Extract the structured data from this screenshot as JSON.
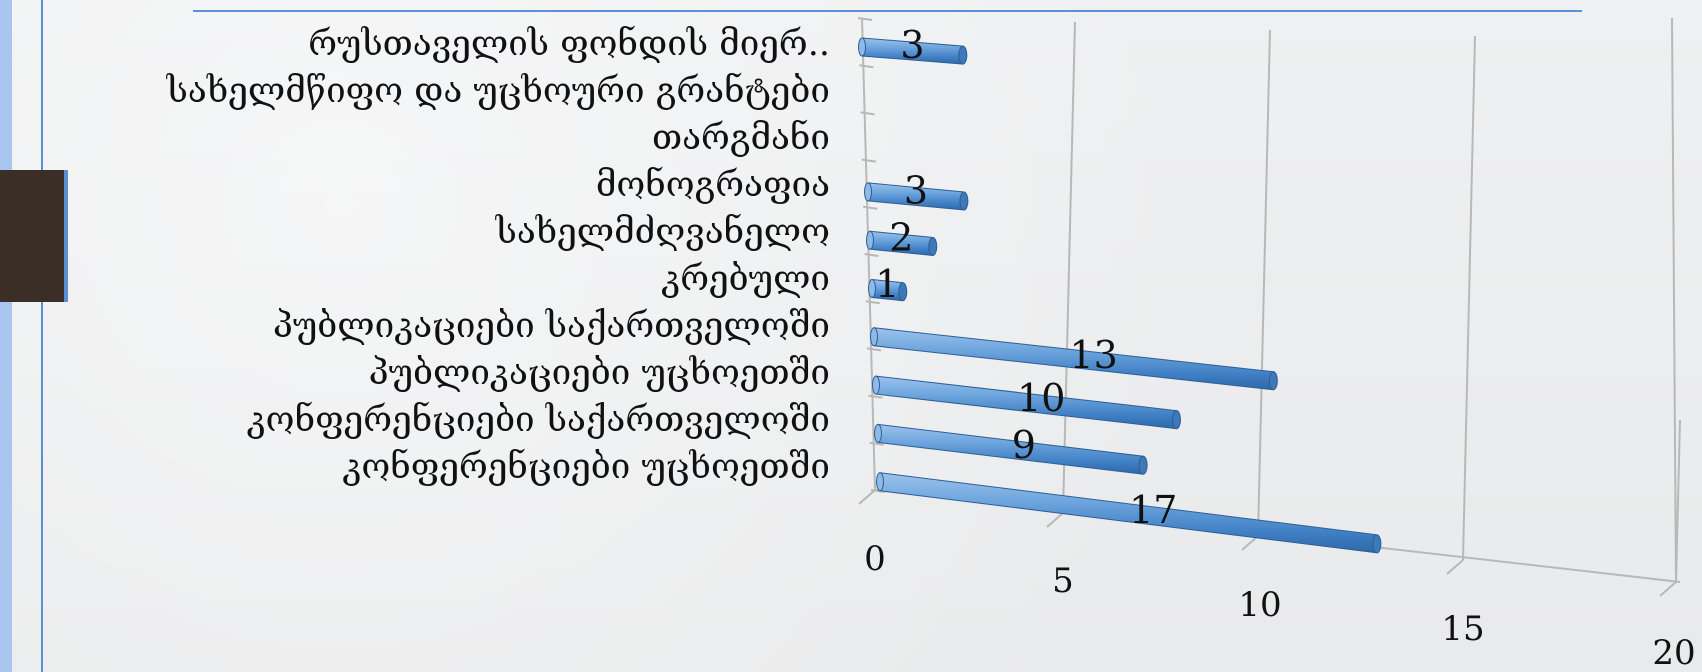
{
  "chart_data": {
    "type": "bar",
    "orientation": "horizontal",
    "style": "3d-cylinder",
    "title": "",
    "xlabel": "",
    "ylabel": "",
    "categories": [
      "რუსთაველის ფონდის მიერ..",
      "სახელმწიფო და უცხოური გრანტები",
      "თარგმანი",
      "მონოგრაფია",
      "სახელმძღვანელო",
      "კრებული",
      "პუბლიკაციები საქართველოში",
      "პუბლიკაციები უცხოეთში",
      "კონფერენციები საქართველოში",
      "კონფერენციები უცხოეთში"
    ],
    "values": [
      3,
      null,
      null,
      3,
      2,
      1,
      13,
      10,
      9,
      17
    ],
    "data_labels": [
      "3",
      "",
      "",
      "3",
      "2",
      "1",
      "13",
      "10",
      "9",
      "17"
    ],
    "xlim": [
      0,
      20
    ],
    "xticks": [
      "0",
      "5",
      "10",
      "15",
      "20"
    ],
    "grid": true,
    "legend": "none",
    "bar_color": "#5a9bd5",
    "grid_color": "#b8b8b8"
  }
}
